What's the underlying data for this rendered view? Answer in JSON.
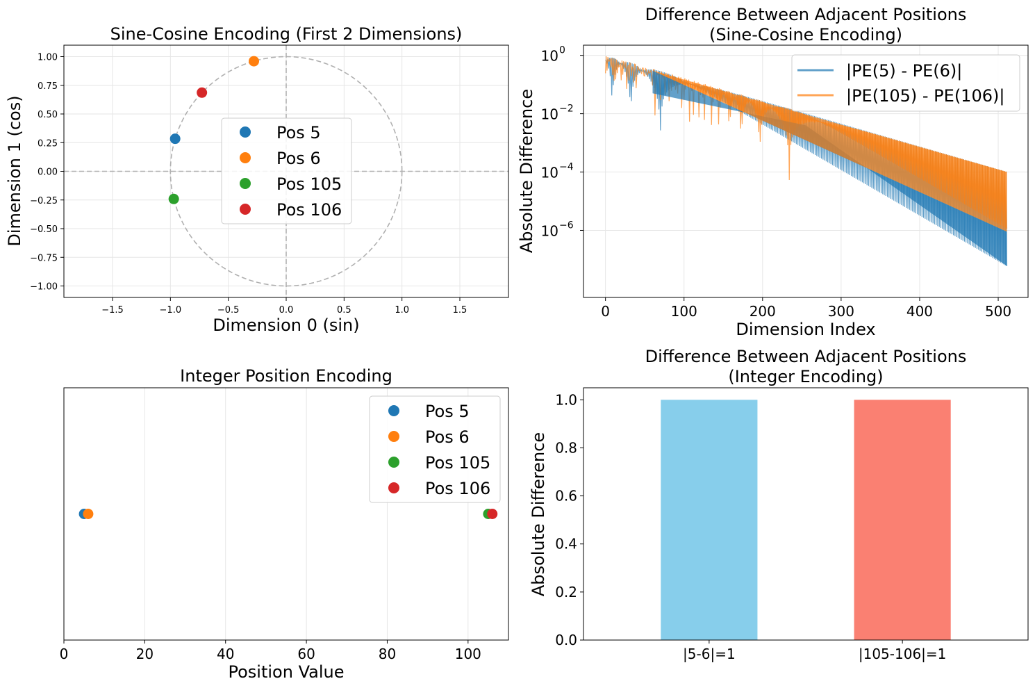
{
  "colors": {
    "blue": "#1f77b4",
    "orange": "#ff7f0e",
    "green": "#2ca02c",
    "red": "#d62728",
    "skyblue": "#87ceeb",
    "salmon": "#fa8072",
    "grid": "#e6e6e6",
    "dashed": "#b0b0b0"
  },
  "chart_data": [
    {
      "type": "scatter",
      "title": "Sine-Cosine Encoding (First 2 Dimensions)",
      "xlabel": "Dimension 0 (sin)",
      "ylabel": "Dimension 1 (cos)",
      "xlim": [
        -1.92,
        1.92
      ],
      "ylim": [
        -1.1,
        1.1
      ],
      "xticks": [
        -1.5,
        -1.0,
        -0.5,
        0.0,
        0.5,
        1.0,
        1.5
      ],
      "xtick_labels": [
        "−1.5",
        "−1.0",
        "−0.5",
        "0.0",
        "0.5",
        "1.0",
        "1.5"
      ],
      "yticks": [
        -1.0,
        -0.75,
        -0.5,
        -0.25,
        0.0,
        0.25,
        0.5,
        0.75,
        1.0
      ],
      "ytick_labels": [
        "−1.00",
        "−0.75",
        "−0.50",
        "−0.25",
        "0.00",
        "0.25",
        "0.50",
        "0.75",
        "1.00"
      ],
      "grid": true,
      "unit_circle": true,
      "legend_placement": "center",
      "series": [
        {
          "name": "Pos 5",
          "color": "#1f77b4",
          "x": [
            -0.959
          ],
          "y": [
            0.284
          ]
        },
        {
          "name": "Pos 6",
          "color": "#ff7f0e",
          "x": [
            -0.279
          ],
          "y": [
            0.96
          ]
        },
        {
          "name": "Pos 105",
          "color": "#2ca02c",
          "x": [
            -0.971
          ],
          "y": [
            -0.241
          ]
        },
        {
          "name": "Pos 106",
          "color": "#d62728",
          "x": [
            -0.728
          ],
          "y": [
            0.686
          ]
        }
      ]
    },
    {
      "type": "line",
      "title": "Difference Between Adjacent Positions\n(Sine-Cosine Encoding)",
      "xlabel": "Dimension Index",
      "ylabel": "Absolute Difference",
      "xlim": [
        -28,
        538
      ],
      "xticks": [
        0,
        100,
        200,
        300,
        400,
        500
      ],
      "yscale": "log",
      "ylim_exp": [
        -8.3,
        0.35
      ],
      "yticks_exp": [
        0,
        -2,
        -4,
        -6
      ],
      "ytick_labels": [
        "10",
        "10",
        "10",
        "10"
      ],
      "ytick_sups": [
        "0",
        "−2",
        "−4",
        "−6"
      ],
      "grid": true,
      "legend_placement": "top-right",
      "series": [
        {
          "name": "|PE(5) - PE(6)|",
          "color": "#1f77b4",
          "alpha": 0.7
        },
        {
          "name": "|PE(105) - PE(106)|",
          "color": "#ff7f0e",
          "alpha": 0.7
        }
      ],
      "envelope": {
        "x": [
          0,
          60,
          511
        ],
        "upper_pe5_6": [
          0.85,
          0.3,
          9e-07
        ],
        "lower_pe5_6_end": 6e-08,
        "upper_pe105_106_end": 0.0001
      }
    },
    {
      "type": "scatter",
      "title": "Integer Position Encoding",
      "xlabel": "Position Value",
      "ylabel": "",
      "xlim": [
        0,
        110
      ],
      "ylim": [
        -1,
        1
      ],
      "xticks": [
        0,
        20,
        40,
        60,
        80,
        100
      ],
      "grid": true,
      "legend_placement": "top-right",
      "series": [
        {
          "name": "Pos 5",
          "color": "#1f77b4",
          "x": [
            5
          ],
          "y": [
            0
          ]
        },
        {
          "name": "Pos 6",
          "color": "#ff7f0e",
          "x": [
            6
          ],
          "y": [
            0
          ]
        },
        {
          "name": "Pos 105",
          "color": "#2ca02c",
          "x": [
            105
          ],
          "y": [
            0
          ]
        },
        {
          "name": "Pos 106",
          "color": "#d62728",
          "x": [
            106
          ],
          "y": [
            0
          ]
        }
      ]
    },
    {
      "type": "bar",
      "title": "Difference Between Adjacent Positions\n(Integer Encoding)",
      "xlabel": "",
      "ylabel": "Absolute Difference",
      "categories": [
        "|5-6|=1",
        "|105-106|=1"
      ],
      "values": [
        1,
        1
      ],
      "bar_colors": [
        "#87ceeb",
        "#fa8072"
      ],
      "ylim": [
        0,
        1.05
      ],
      "yticks": [
        0.0,
        0.2,
        0.4,
        0.6,
        0.8,
        1.0
      ],
      "ytick_labels": [
        "0.0",
        "0.2",
        "0.4",
        "0.6",
        "0.8",
        "1.0"
      ],
      "grid": false
    }
  ]
}
